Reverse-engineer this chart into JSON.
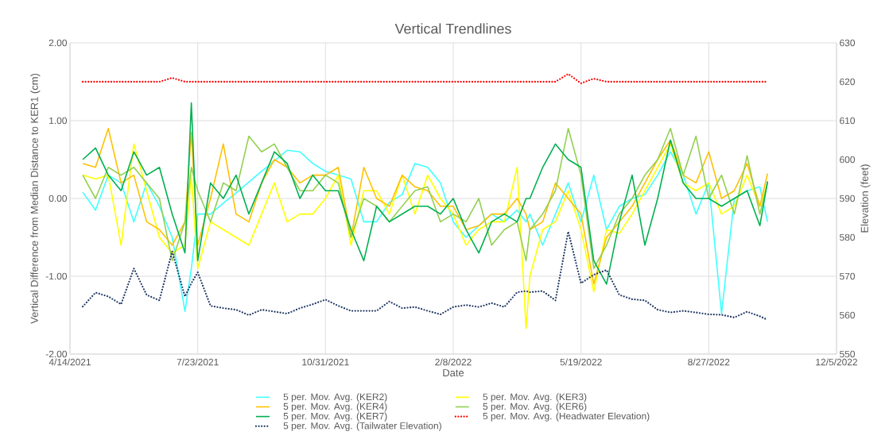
{
  "chart_data": {
    "type": "line",
    "title": "Vertical Trendlines",
    "xlabel": "Date",
    "ylabel": "Vertical Difference from Median Distance to KER1 (cm)",
    "y2label": "Elevation (feet)",
    "x": [
      "2021-04-24",
      "2021-05-04",
      "2021-05-14",
      "2021-05-24",
      "2021-06-03",
      "2021-06-13",
      "2021-06-23",
      "2021-07-03",
      "2021-07-13",
      "2021-07-18",
      "2021-07-23",
      "2021-08-02",
      "2021-08-12",
      "2021-08-22",
      "2021-09-01",
      "2021-09-11",
      "2021-09-21",
      "2021-10-01",
      "2021-10-11",
      "2021-10-21",
      "2021-10-31",
      "2021-11-10",
      "2021-11-20",
      "2021-11-30",
      "2021-12-10",
      "2021-12-20",
      "2021-12-30",
      "2022-01-09",
      "2022-01-19",
      "2022-01-29",
      "2022-02-08",
      "2022-02-18",
      "2022-02-28",
      "2022-03-10",
      "2022-03-20",
      "2022-03-30",
      "2022-04-06",
      "2022-04-09",
      "2022-04-19",
      "2022-04-29",
      "2022-05-09",
      "2022-05-19",
      "2022-05-29",
      "2022-06-08",
      "2022-06-18",
      "2022-06-28",
      "2022-07-08",
      "2022-07-18",
      "2022-07-28",
      "2022-08-07",
      "2022-08-17",
      "2022-08-27",
      "2022-09-06",
      "2022-09-16",
      "2022-09-26",
      "2022-10-06",
      "2022-10-12"
    ],
    "series": [
      {
        "name": "5 per. Mov. Avg. (KER2)",
        "color": "#40ffff",
        "line_style": "solid",
        "values": [
          0.08,
          -0.15,
          0.3,
          0.2,
          -0.3,
          0.2,
          -0.1,
          -0.5,
          -1.45,
          -0.9,
          -0.2,
          -0.2,
          -0.06,
          0.07,
          0.21,
          0.35,
          0.48,
          0.62,
          0.6,
          0.45,
          0.35,
          0.3,
          0.25,
          -0.3,
          -0.3,
          -0.05,
          0.05,
          0.45,
          0.4,
          0.2,
          -0.3,
          -0.5,
          -0.35,
          -0.2,
          -0.3,
          -0.15,
          -0.3,
          -0.2,
          -0.6,
          -0.2,
          0.2,
          -0.3,
          0.3,
          -0.4,
          -0.1,
          0.0,
          0.05,
          0.3,
          0.6,
          0.3,
          -0.2,
          0.2,
          -1.48,
          0.0,
          0.1,
          0.15,
          -0.3
        ]
      },
      {
        "name": "5 per. Mov. Avg. (KER3)",
        "color": "#ffff00",
        "line_style": "solid",
        "values": [
          0.3,
          0.25,
          0.3,
          -0.6,
          0.7,
          0.1,
          -0.5,
          -0.7,
          -0.6,
          0.3,
          -0.9,
          -0.3,
          -0.4,
          -0.5,
          -0.6,
          -0.2,
          0.2,
          -0.3,
          -0.2,
          -0.2,
          0.0,
          0.3,
          -0.6,
          0.1,
          0.1,
          -0.2,
          0.3,
          -0.2,
          0.3,
          0.0,
          -0.2,
          -0.6,
          -0.4,
          -0.3,
          -0.3,
          0.4,
          -1.67,
          -1.0,
          -0.4,
          -0.3,
          0.1,
          -0.4,
          -1.2,
          -0.4,
          -0.45,
          -0.2,
          0.1,
          0.4,
          0.7,
          0.2,
          0.1,
          0.2,
          -0.2,
          -0.1,
          0.3,
          -0.1,
          0.2
        ]
      },
      {
        "name": "5 per. Mov. Avg. (KER4)",
        "color": "#ffc000",
        "line_style": "solid",
        "values": [
          0.45,
          0.4,
          0.9,
          0.2,
          0.3,
          -0.3,
          -0.4,
          -0.6,
          -0.3,
          0.85,
          -0.6,
          0.0,
          0.7,
          -0.2,
          -0.3,
          0.2,
          0.5,
          0.4,
          0.2,
          0.3,
          0.3,
          0.4,
          -0.5,
          0.4,
          0.0,
          -0.1,
          0.3,
          0.15,
          0.1,
          -0.1,
          -0.1,
          -0.4,
          -0.35,
          -0.2,
          -0.2,
          0.0,
          -0.2,
          -0.4,
          -0.3,
          0.2,
          0.0,
          -0.2,
          -1.1,
          -0.5,
          -0.3,
          -0.1,
          0.2,
          0.5,
          0.75,
          0.3,
          0.2,
          0.6,
          0.0,
          0.1,
          0.45,
          -0.1,
          0.32
        ]
      },
      {
        "name": "5 per. Mov. Avg. (KER6)",
        "color": "#92d050",
        "line_style": "solid",
        "values": [
          0.3,
          0.0,
          0.4,
          0.3,
          0.4,
          0.2,
          0.0,
          -0.8,
          -0.3,
          0.4,
          0.1,
          -0.3,
          0.2,
          0.1,
          0.8,
          0.6,
          0.7,
          0.4,
          0.1,
          0.1,
          0.3,
          0.2,
          -0.5,
          0.0,
          -0.1,
          -0.3,
          -0.1,
          0.1,
          0.15,
          -0.3,
          -0.2,
          -0.3,
          0.0,
          -0.6,
          -0.4,
          -0.3,
          -0.8,
          -0.4,
          -0.2,
          0.1,
          0.9,
          0.3,
          -0.9,
          -0.6,
          -0.2,
          0.0,
          0.3,
          0.5,
          0.9,
          0.3,
          0.8,
          0.0,
          0.3,
          -0.2,
          0.55,
          -0.2,
          0.2
        ]
      },
      {
        "name": "5 per. Mov. Avg. (KER7)",
        "color": "#00b050",
        "line_style": "solid",
        "values": [
          0.5,
          0.65,
          0.3,
          0.1,
          0.6,
          0.3,
          0.4,
          -0.2,
          -0.7,
          1.23,
          -0.8,
          0.2,
          0.0,
          0.3,
          -0.2,
          0.2,
          0.6,
          0.45,
          0.0,
          0.3,
          0.1,
          0.1,
          -0.4,
          -0.8,
          -0.1,
          -0.3,
          -0.2,
          -0.1,
          -0.1,
          -0.2,
          0.0,
          -0.4,
          -0.7,
          -0.3,
          -0.2,
          -0.3,
          0.0,
          0.0,
          0.4,
          0.7,
          0.5,
          0.4,
          -0.8,
          -1.1,
          -0.3,
          0.3,
          -0.6,
          0.0,
          0.75,
          0.2,
          0.0,
          0.0,
          -0.1,
          0.0,
          0.1,
          -0.35,
          0.22
        ]
      },
      {
        "name": "5 per. Mov. Avg. (Headwater Elevation)",
        "color": "#ff0000",
        "line_style": "dotted",
        "axis": "y2",
        "values": [
          620,
          620,
          620,
          620,
          620,
          620,
          620,
          621,
          620,
          620,
          620,
          620,
          620,
          620,
          620,
          620,
          620,
          620,
          620,
          620,
          620,
          620,
          620,
          620,
          620,
          620,
          620,
          620,
          620,
          620,
          620,
          620,
          620,
          620,
          620,
          620,
          620,
          620,
          620,
          620,
          622,
          619.6,
          620.8,
          620,
          620,
          620,
          620,
          620,
          620,
          620,
          620,
          620,
          620,
          620,
          620,
          620,
          620
        ]
      },
      {
        "name": "5 per. Mov. Avg. (Tailwater Elevation)",
        "color": "#203864",
        "line_style": "dotted",
        "axis": "y2",
        "values": [
          562.2,
          565.8,
          564.8,
          562.8,
          572.0,
          565.2,
          563.8,
          576.4,
          564.8,
          568.2,
          571.0,
          562.4,
          561.8,
          561.4,
          560.0,
          561.4,
          560.9,
          560.4,
          561.8,
          562.8,
          564.0,
          562.4,
          561.1,
          561.1,
          561.1,
          563.5,
          561.8,
          562.1,
          561.1,
          560.2,
          562.1,
          562.6,
          562.1,
          563.1,
          562.1,
          565.9,
          566.2,
          565.9,
          566.2,
          563.8,
          581.5,
          568.2,
          570.4,
          571.6,
          565.2,
          564.1,
          563.8,
          561.4,
          560.7,
          561.1,
          560.7,
          560.2,
          560.1,
          559.4,
          560.9,
          559.7,
          558.8
        ]
      }
    ],
    "xlim": [
      "2021-04-14",
      "2022-12-05"
    ],
    "xticks": [
      {
        "value": "2021-04-14",
        "label": "4/14/2021"
      },
      {
        "value": "2021-07-23",
        "label": "7/23/2021"
      },
      {
        "value": "2021-10-31",
        "label": "10/31/2021"
      },
      {
        "value": "2022-02-08",
        "label": "2/8/2022"
      },
      {
        "value": "2022-05-19",
        "label": "5/19/2022"
      },
      {
        "value": "2022-08-27",
        "label": "8/27/2022"
      },
      {
        "value": "2022-12-05",
        "label": "12/5/2022"
      }
    ],
    "ylim": [
      -2,
      2
    ],
    "yticks": [
      {
        "value": -2,
        "label": "-2.00"
      },
      {
        "value": -1,
        "label": "-1.00"
      },
      {
        "value": 0,
        "label": "0.00"
      },
      {
        "value": 1,
        "label": "1.00"
      },
      {
        "value": 2,
        "label": "2.00"
      }
    ],
    "y2lim": [
      550,
      630
    ],
    "y2ticks": [
      550,
      560,
      570,
      580,
      590,
      600,
      610,
      620,
      630
    ],
    "grid": true,
    "legend": "bottom",
    "marker": "none"
  }
}
